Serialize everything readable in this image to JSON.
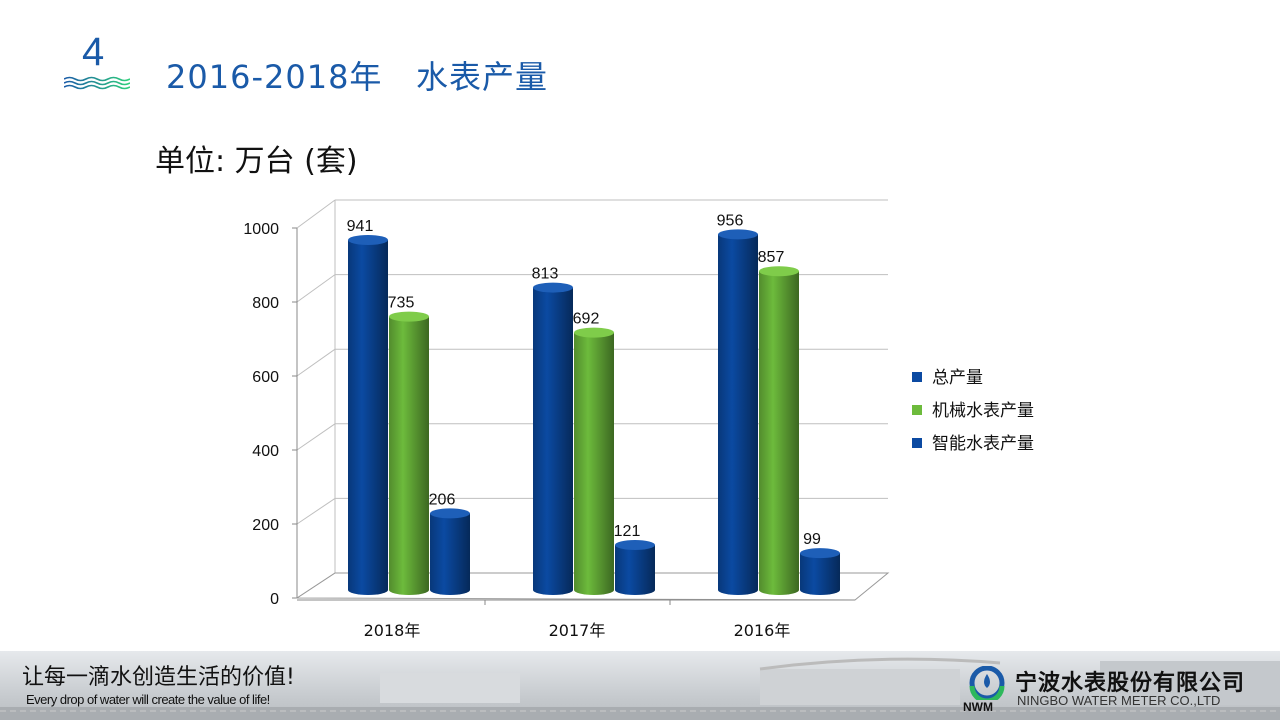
{
  "header": {
    "section_number": "4",
    "title": "2016-2018年   水表产量",
    "unit_label": "单位: 万台 (套)"
  },
  "chart_data": {
    "type": "bar",
    "style": "3d-cylinder",
    "categories": [
      "2018年",
      "2017年",
      "2016年"
    ],
    "series": [
      {
        "name": "总产量",
        "color": "#0b4aa2",
        "values": [
          941,
          813,
          956
        ]
      },
      {
        "name": "机械水表产量",
        "color": "#6dbb3c",
        "values": [
          735,
          692,
          857
        ]
      },
      {
        "name": "智能水表产量",
        "color": "#0b4aa2",
        "values": [
          206,
          121,
          99
        ]
      }
    ],
    "yticks": [
      "0",
      "200",
      "400",
      "600",
      "800",
      "1000"
    ],
    "ylim": [
      0,
      1000
    ],
    "grid": true,
    "legend": "right",
    "data_labels": true
  },
  "footer": {
    "slogan_cn": "让每一滴水创造生活的价值!",
    "slogan_en": "Every drop of water will create the value of life!",
    "company_cn": "宁波水表股份有限公司",
    "company_en": "NINGBO WATER METER CO.,LTD",
    "logo_text": "NWM"
  }
}
